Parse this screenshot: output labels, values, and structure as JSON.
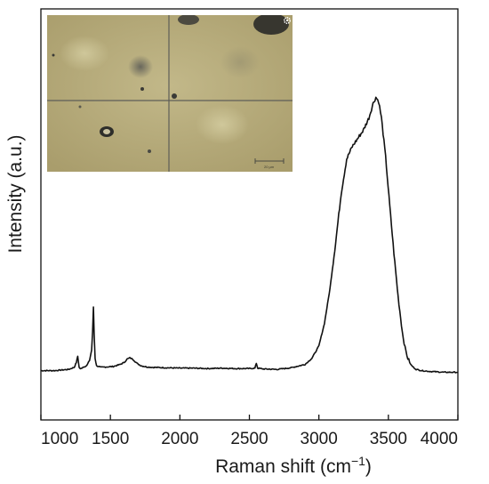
{
  "chart_data": {
    "type": "line",
    "title": "",
    "xlabel": "Raman shift (cm",
    "xlabel_sup": "−1",
    "xlabel_close": ")",
    "ylabel": "Intensity (a.u.)",
    "xlim": [
      1000,
      4000
    ],
    "ylim": [
      0,
      100
    ],
    "x_ticks": [
      1000,
      1500,
      2000,
      2500,
      3000,
      3500,
      4000
    ],
    "x_tick_labels": [
      "1000",
      "1500",
      "2000",
      "2500",
      "3000",
      "3500",
      "4000"
    ],
    "y_ticks_labeled": false,
    "grid": false,
    "legend": "none",
    "line_color": "#111111",
    "series": [
      {
        "x": [
          1000,
          1100,
          1200,
          1240,
          1255,
          1265,
          1275,
          1285,
          1300,
          1330,
          1350,
          1365,
          1372,
          1378,
          1383,
          1390,
          1400,
          1430,
          1470,
          1520,
          1570,
          1600,
          1620,
          1640,
          1660,
          1690,
          1720,
          1760,
          1800,
          1900,
          2000,
          2100,
          2200,
          2300,
          2400,
          2500,
          2540,
          2550,
          2560,
          2600,
          2700,
          2800,
          2900,
          2950,
          3000,
          3040,
          3080,
          3120,
          3160,
          3200,
          3240,
          3280,
          3320,
          3360,
          3390,
          3410,
          3430,
          3450,
          3480,
          3510,
          3540,
          3570,
          3600,
          3620,
          3640,
          3660,
          3680,
          3700,
          3740,
          3800,
          3900,
          4000
        ],
        "y": [
          12.0,
          12.0,
          12.3,
          12.8,
          14.0,
          15.5,
          12.8,
          12.4,
          12.8,
          13.2,
          14.5,
          17.0,
          21.5,
          27.5,
          21.0,
          15.0,
          13.2,
          12.8,
          12.9,
          13.0,
          13.5,
          14.0,
          14.8,
          15.1,
          14.8,
          13.8,
          13.2,
          12.9,
          12.8,
          12.7,
          12.6,
          12.6,
          12.5,
          12.6,
          12.5,
          12.5,
          12.6,
          13.8,
          12.6,
          12.4,
          12.3,
          12.7,
          13.5,
          15.0,
          18.0,
          23.5,
          32.0,
          43.0,
          55.0,
          63.5,
          66.5,
          68.5,
          70.5,
          73.5,
          77.0,
          78.5,
          77.5,
          73.5,
          64.0,
          52.0,
          40.5,
          30.0,
          21.5,
          17.5,
          15.0,
          13.5,
          12.8,
          12.3,
          12.0,
          11.8,
          11.6,
          11.6
        ]
      }
    ],
    "inset": {
      "type": "optical-micrograph",
      "scale_bar_label": "20 µm",
      "icon": "gear-icon"
    }
  }
}
